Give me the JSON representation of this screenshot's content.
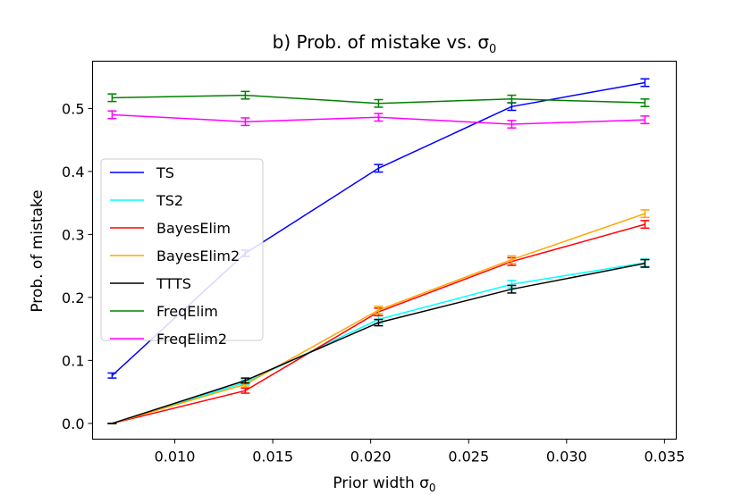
{
  "chart_data": {
    "type": "line",
    "title": "b) Prob. of mistake vs. σ0",
    "title_text": "b) Prob. of mistake vs. σ",
    "title_subscript": "0",
    "xlabel": "Prior width σ0",
    "xlabel_text": "Prior width σ",
    "xlabel_subscript": "0",
    "ylabel": "Prob. of mistake",
    "xlim": [
      0.0058,
      0.0356
    ],
    "ylim": [
      -0.025,
      0.575
    ],
    "xticks": [
      0.01,
      0.015,
      0.02,
      0.025,
      0.03,
      0.035
    ],
    "xtick_labels": [
      "0.010",
      "0.015",
      "0.020",
      "0.025",
      "0.030",
      "0.035"
    ],
    "yticks": [
      0.0,
      0.1,
      0.2,
      0.3,
      0.4,
      0.5
    ],
    "ytick_labels": [
      "0.0",
      "0.1",
      "0.2",
      "0.3",
      "0.4",
      "0.5"
    ],
    "grid": false,
    "legend_position": "center-left",
    "x": [
      0.0068,
      0.0136,
      0.0204,
      0.0272,
      0.034
    ],
    "series": [
      {
        "name": "TS",
        "color": "#0000ff",
        "values": [
          0.076,
          0.27,
          0.405,
          0.503,
          0.541
        ],
        "errors": [
          0.004,
          0.005,
          0.006,
          0.006,
          0.006
        ]
      },
      {
        "name": "TS2",
        "color": "#00ffff",
        "values": [
          0.0,
          0.065,
          0.165,
          0.221,
          0.255
        ],
        "errors": [
          0.0,
          0.004,
          0.006,
          0.006,
          0.006
        ]
      },
      {
        "name": "BayesElim",
        "color": "#ff0000",
        "values": [
          0.0,
          0.052,
          0.177,
          0.257,
          0.316
        ],
        "errors": [
          0.0,
          0.004,
          0.006,
          0.006,
          0.006
        ]
      },
      {
        "name": "BayesElim2",
        "color": "#ffa500",
        "values": [
          0.0,
          0.062,
          0.18,
          0.26,
          0.333
        ],
        "errors": [
          0.0,
          0.004,
          0.006,
          0.006,
          0.006
        ]
      },
      {
        "name": "TTTS",
        "color": "#000000",
        "values": [
          0.0,
          0.068,
          0.16,
          0.213,
          0.254
        ],
        "errors": [
          0.0,
          0.004,
          0.005,
          0.006,
          0.006
        ]
      },
      {
        "name": "FreqElim",
        "color": "#008000",
        "values": [
          0.517,
          0.521,
          0.508,
          0.515,
          0.509
        ],
        "errors": [
          0.006,
          0.006,
          0.006,
          0.006,
          0.006
        ]
      },
      {
        "name": "FreqElim2",
        "color": "#ff00ff",
        "values": [
          0.49,
          0.479,
          0.486,
          0.475,
          0.482
        ],
        "errors": [
          0.006,
          0.006,
          0.006,
          0.006,
          0.006
        ]
      }
    ]
  }
}
